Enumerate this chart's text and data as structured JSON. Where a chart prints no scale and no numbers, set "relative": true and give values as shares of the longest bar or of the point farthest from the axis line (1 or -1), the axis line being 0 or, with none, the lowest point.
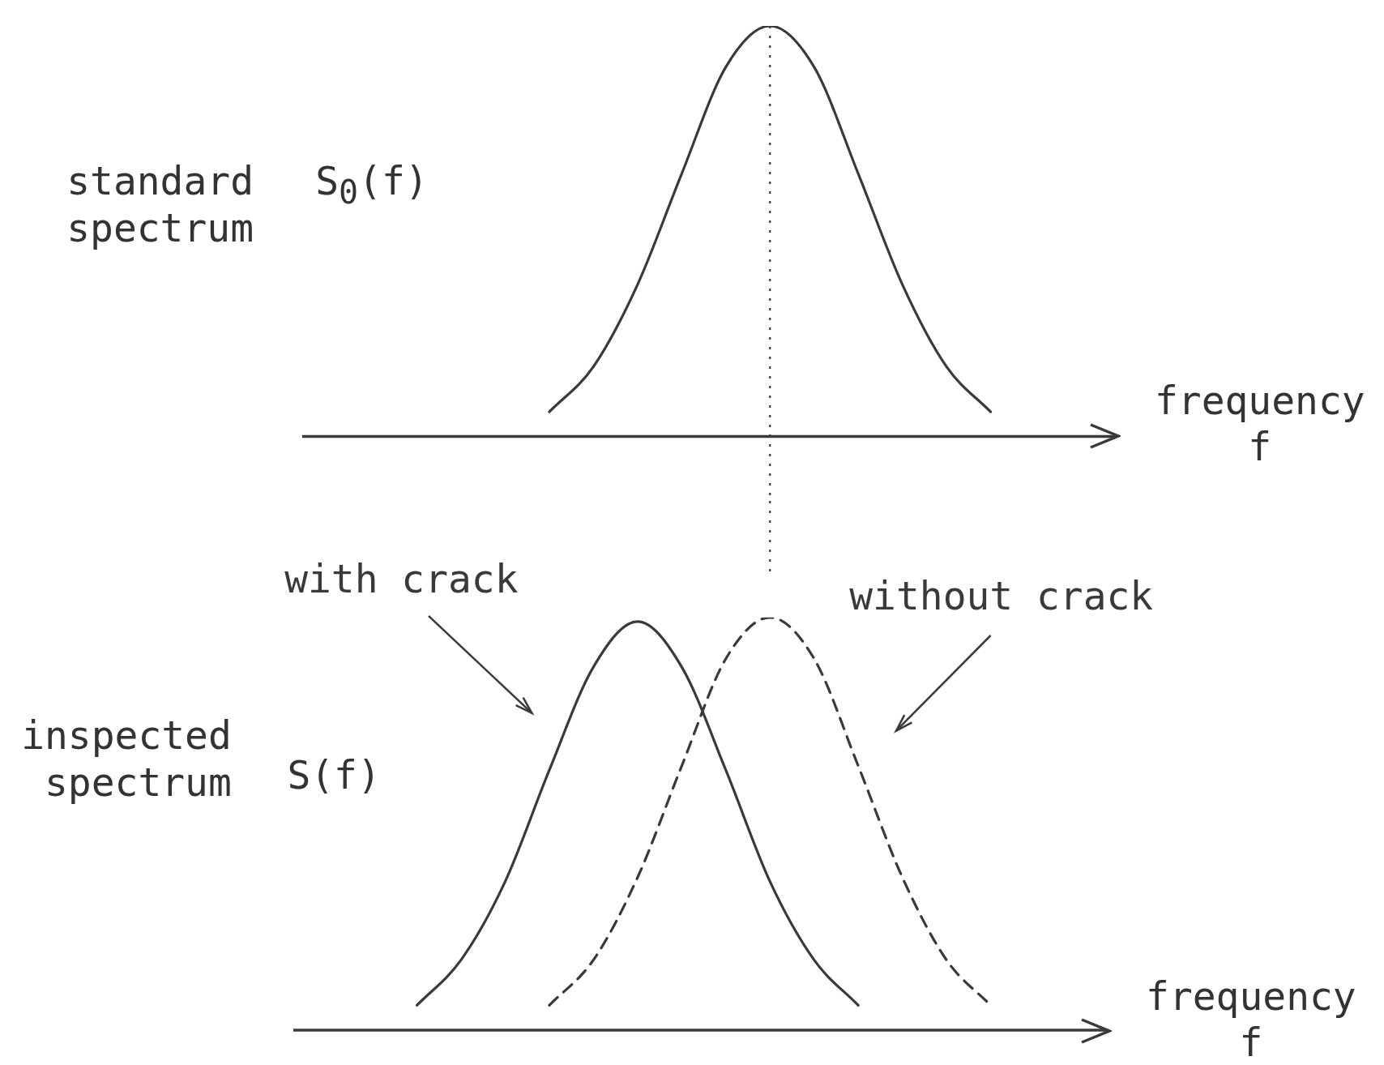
{
  "chart_data": [
    {
      "type": "line",
      "relative": true,
      "ylabel": "standard spectrum",
      "xlabel": "frequency f",
      "annotations": [
        "S$_{0}$(f)"
      ],
      "categories": [
        null,
        null,
        null,
        null,
        null,
        null,
        null,
        null,
        null,
        null,
        null,
        null,
        null,
        null,
        null,
        null,
        null,
        null,
        null,
        null
      ],
      "series": [
        {
          "color": "#3a3a3a",
          "line_style": "solid",
          "values": [
            null,
            null,
            null,
            null,
            null,
            null,
            0.06,
            0.17,
            0.37,
            0.64,
            0.9,
            1,
            0.9,
            0.64,
            0.37,
            0.17,
            0.06,
            null,
            null,
            null
          ]
        }
      ],
      "legend": false,
      "marker": "none"
    },
    {
      "type": "line",
      "relative": true,
      "ylabel": "inspected spectrum",
      "xlabel": "frequency f",
      "annotations": [
        "S(f)"
      ],
      "categories": [
        null,
        null,
        null,
        null,
        null,
        null,
        null,
        null,
        null,
        null,
        null,
        null,
        null,
        null,
        null,
        null,
        null,
        null,
        null,
        null
      ],
      "series": [
        {
          "name": "with crack",
          "color": "#3a3a3a",
          "line_style": "solid",
          "values": [
            null,
            null,
            null,
            0.06,
            0.17,
            0.36,
            0.63,
            0.88,
            0.99,
            0.88,
            0.63,
            0.36,
            0.17,
            0.06,
            null,
            null,
            null,
            null,
            null,
            null
          ]
        },
        {
          "name": "without crack",
          "color": "#3a3a3a",
          "line_style": "dashed",
          "values": [
            null,
            null,
            null,
            null,
            null,
            null,
            0.06,
            0.17,
            0.37,
            0.64,
            0.9,
            1,
            0.9,
            0.64,
            0.37,
            0.17,
            0.06,
            null,
            null,
            null
          ]
        }
      ],
      "legend": false,
      "marker": "none"
    }
  ]
}
